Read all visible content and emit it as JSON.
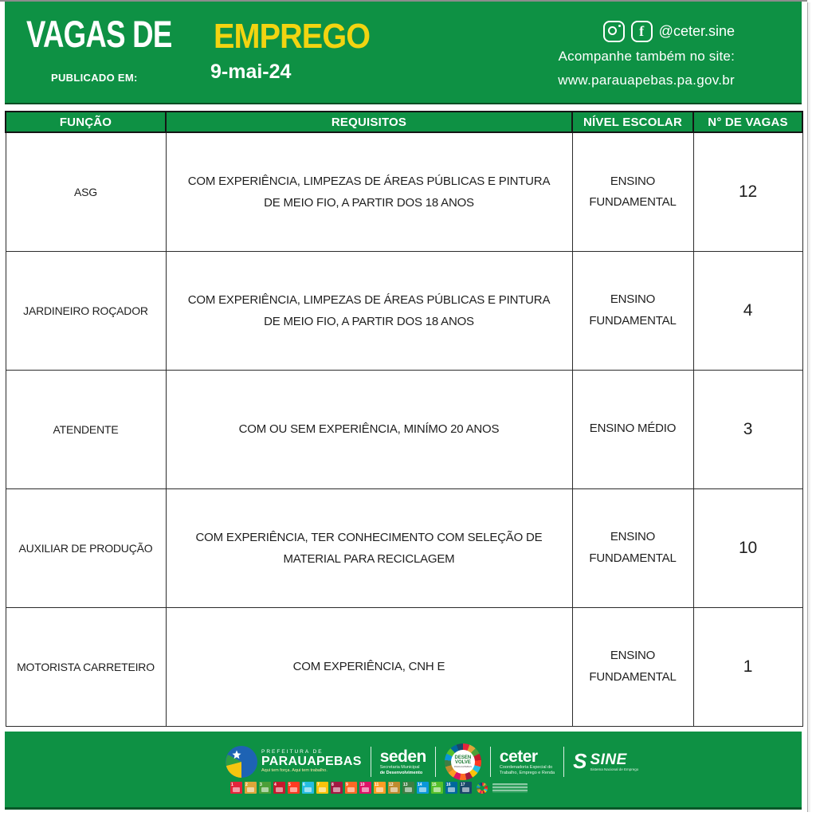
{
  "poster": {
    "header": {
      "title_prefix": "VAGAS DE",
      "title_highlight": "EMPREGO",
      "published_label": "PUBLICADO EM:",
      "published_date": "9-mai-24",
      "social": {
        "icons": [
          "instagram-icon",
          "facebook-icon"
        ],
        "facebook_glyph": "f",
        "handle": "@ceter.sine",
        "follow_line": "Acompanhe também no site:",
        "site_url": "www.parauapebas.pa.gov.br"
      }
    },
    "table": {
      "columns": [
        "FUNÇÃO",
        "REQUISITOS",
        "NÍVEL ESCOLAR",
        "N° DE VAGAS"
      ],
      "rows": [
        {
          "funcao": "ASG",
          "requisitos": "COM EXPERIÊNCIA, LIMPEZAS DE ÁREAS PÚBLICAS E PINTURA DE MEIO FIO, A PARTIR DOS 18 ANOS",
          "nivel_escolar": "ENSINO FUNDAMENTAL",
          "vagas": "12"
        },
        {
          "funcao": "JARDINEIRO ROÇADOR",
          "requisitos": "COM EXPERIÊNCIA, LIMPEZAS DE ÁREAS PÚBLICAS E PINTURA DE MEIO FIO, A PARTIR DOS 18 ANOS",
          "nivel_escolar": "ENSINO FUNDAMENTAL",
          "vagas": "4"
        },
        {
          "funcao": "ATENDENTE",
          "requisitos": "COM OU SEM EXPERIÊNCIA, MINÍMO 20 ANOS",
          "nivel_escolar": "ENSINO MÉDIO",
          "vagas": "3"
        },
        {
          "funcao": "AUXILIAR DE PRODUÇÃO",
          "requisitos": "COM EXPERIÊNCIA, TER CONHECIMENTO COM SELEÇÃO DE MATERIAL PARA RECICLAGEM",
          "nivel_escolar": "ENSINO FUNDAMENTAL",
          "vagas": "10"
        },
        {
          "funcao": "MOTORISTA CARRETEIRO",
          "requisitos": "COM EXPERIÊNCIA,  CNH E",
          "nivel_escolar": "ENSINO FUNDAMENTAL",
          "vagas": "1"
        }
      ]
    },
    "footer": {
      "prefeitura": {
        "line1": "PREFEITURA DE",
        "line2": "PARAUAPEBAS",
        "tagline": "Aqui tem força. Aqui tem trabalho."
      },
      "seden": {
        "name": "seden",
        "line1": "Secretaria Municipal",
        "line2": "de Desenvolvimento"
      },
      "desenvolve": {
        "line1": "DESEN",
        "line2": "VOLVE",
        "line3": "PARAUAPEBAS"
      },
      "ceter": {
        "name": "ceter",
        "line1": "Coordenadoria Especial do",
        "line2": "Trabalho, Emprego e Renda"
      },
      "sine": {
        "icon_glyph": "S",
        "name": "SINE",
        "tagline": "Sistema Nacional de Emprego"
      },
      "sdg_colors": [
        "#E5243B",
        "#DDA63A",
        "#4C9F38",
        "#C5192D",
        "#FF3A21",
        "#26BDE2",
        "#FCC30B",
        "#A21942",
        "#FD6925",
        "#DD1367",
        "#FD9D24",
        "#BF8B2E",
        "#3F7E44",
        "#0A97D9",
        "#56C02B",
        "#00689D",
        "#19486A"
      ]
    },
    "colors": {
      "green": "#0E9144",
      "yellow": "#F2D411",
      "text_dark": "#1F1F1F"
    }
  }
}
